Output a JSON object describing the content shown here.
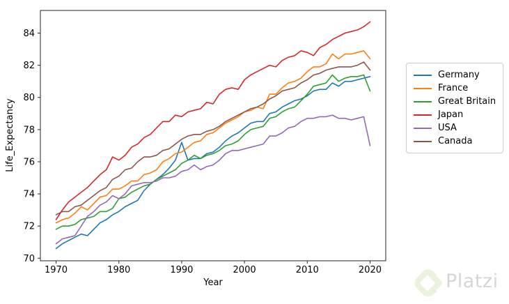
{
  "chart_data": {
    "type": "line",
    "title": "",
    "xlabel": "Year",
    "ylabel": "Life_Expectancy",
    "grid": false,
    "legend_position": "outside-right",
    "xlim": [
      1967.5,
      2022.5
    ],
    "ylim": [
      69.84,
      85.41
    ],
    "xticks": [
      "1970",
      "1980",
      "1990",
      "2000",
      "2010",
      "2020"
    ],
    "xtick_values": [
      1970,
      1980,
      1990,
      2000,
      2010,
      2020
    ],
    "yticks": [
      "70",
      "72",
      "74",
      "76",
      "78",
      "80",
      "82",
      "84"
    ],
    "ytick_values": [
      70,
      72,
      74,
      76,
      78,
      80,
      82,
      84
    ],
    "x": [
      1970,
      1971,
      1972,
      1973,
      1974,
      1975,
      1976,
      1977,
      1978,
      1979,
      1980,
      1981,
      1982,
      1983,
      1984,
      1985,
      1986,
      1987,
      1988,
      1989,
      1990,
      1991,
      1992,
      1993,
      1994,
      1995,
      1996,
      1997,
      1998,
      1999,
      2000,
      2001,
      2002,
      2003,
      2004,
      2005,
      2006,
      2007,
      2008,
      2009,
      2010,
      2011,
      2012,
      2013,
      2014,
      2015,
      2016,
      2017,
      2018,
      2019,
      2020
    ],
    "series": [
      {
        "name": "Germany",
        "color": "#1f77b4",
        "values": [
          70.6,
          70.9,
          71.1,
          71.3,
          71.5,
          71.4,
          71.8,
          72.2,
          72.4,
          72.7,
          72.9,
          73.2,
          73.4,
          73.6,
          74.2,
          74.6,
          74.9,
          75.2,
          75.6,
          76.1,
          77.2,
          76.1,
          76.2,
          76.2,
          76.5,
          76.6,
          76.9,
          77.3,
          77.6,
          77.8,
          78.1,
          78.4,
          78.5,
          78.5,
          79.0,
          79.1,
          79.4,
          79.6,
          79.8,
          79.9,
          80.1,
          80.4,
          80.5,
          80.5,
          80.9,
          80.7,
          81.0,
          81.0,
          81.1,
          81.2,
          81.3
        ]
      },
      {
        "name": "France",
        "color": "#ff7f0e",
        "values": [
          72.2,
          72.4,
          72.5,
          72.8,
          73.2,
          73.0,
          73.4,
          73.8,
          73.9,
          74.3,
          74.3,
          74.5,
          74.8,
          74.8,
          75.2,
          75.3,
          75.5,
          76.0,
          76.2,
          76.5,
          76.6,
          76.9,
          77.2,
          77.3,
          77.7,
          77.8,
          78.1,
          78.4,
          78.6,
          78.8,
          79.1,
          79.2,
          79.4,
          79.3,
          80.2,
          80.2,
          80.6,
          80.9,
          81.0,
          81.2,
          81.6,
          81.9,
          81.9,
          82.1,
          82.7,
          82.4,
          82.7,
          82.7,
          82.8,
          82.9,
          82.4
        ]
      },
      {
        "name": "Great Britain",
        "color": "#2ca02c",
        "values": [
          71.8,
          72.0,
          72.0,
          72.1,
          72.4,
          72.5,
          72.6,
          72.9,
          72.9,
          73.1,
          73.7,
          73.8,
          74.1,
          74.3,
          74.5,
          74.6,
          74.9,
          75.1,
          75.3,
          75.5,
          75.9,
          76.1,
          76.4,
          76.2,
          76.4,
          76.5,
          76.7,
          77.0,
          77.1,
          77.3,
          77.7,
          78.0,
          78.1,
          78.2,
          78.7,
          78.8,
          79.1,
          79.3,
          79.4,
          79.8,
          80.2,
          80.7,
          80.8,
          80.9,
          81.4,
          81.0,
          81.2,
          81.3,
          81.3,
          81.4,
          80.4
        ]
      },
      {
        "name": "Japan",
        "color": "#d62728",
        "values": [
          72.4,
          73.0,
          73.5,
          73.8,
          74.1,
          74.4,
          74.8,
          75.2,
          75.5,
          76.3,
          76.1,
          76.4,
          76.9,
          77.1,
          77.5,
          77.7,
          78.1,
          78.5,
          78.5,
          78.9,
          78.8,
          79.1,
          79.2,
          79.3,
          79.7,
          79.6,
          80.2,
          80.5,
          80.6,
          80.5,
          81.1,
          81.4,
          81.6,
          81.8,
          82.0,
          81.9,
          82.3,
          82.5,
          82.6,
          82.9,
          82.8,
          82.6,
          83.1,
          83.3,
          83.6,
          83.8,
          84.0,
          84.1,
          84.2,
          84.4,
          84.7
        ]
      },
      {
        "name": "USA",
        "color": "#9467bd",
        "values": [
          70.9,
          71.2,
          71.3,
          71.4,
          72.0,
          72.6,
          72.9,
          73.3,
          73.5,
          73.9,
          73.7,
          74.0,
          74.5,
          74.6,
          74.7,
          74.7,
          74.8,
          75.0,
          75.0,
          75.1,
          75.4,
          75.5,
          75.8,
          75.5,
          75.7,
          75.8,
          76.1,
          76.5,
          76.7,
          76.7,
          76.8,
          76.9,
          77.0,
          77.1,
          77.6,
          77.6,
          77.8,
          78.1,
          78.2,
          78.5,
          78.7,
          78.7,
          78.8,
          78.8,
          78.9,
          78.7,
          78.7,
          78.6,
          78.7,
          78.8,
          77.0
        ]
      },
      {
        "name": "Canada",
        "color": "#8c564b",
        "values": [
          72.7,
          72.9,
          72.9,
          73.2,
          73.3,
          73.6,
          73.9,
          74.2,
          74.4,
          74.9,
          75.1,
          75.5,
          75.6,
          76.0,
          76.3,
          76.3,
          76.4,
          76.7,
          76.8,
          77.1,
          77.4,
          77.6,
          77.7,
          77.7,
          77.9,
          78.0,
          78.2,
          78.5,
          78.7,
          78.9,
          79.1,
          79.3,
          79.4,
          79.6,
          79.9,
          80.1,
          80.4,
          80.5,
          80.6,
          80.9,
          81.1,
          81.4,
          81.5,
          81.7,
          81.8,
          81.9,
          81.9,
          81.9,
          82.0,
          82.2,
          81.7
        ]
      }
    ]
  },
  "watermark": {
    "text": "Platzi",
    "logo_color": "#eaf3de",
    "text_color": "#d6d6d6"
  }
}
